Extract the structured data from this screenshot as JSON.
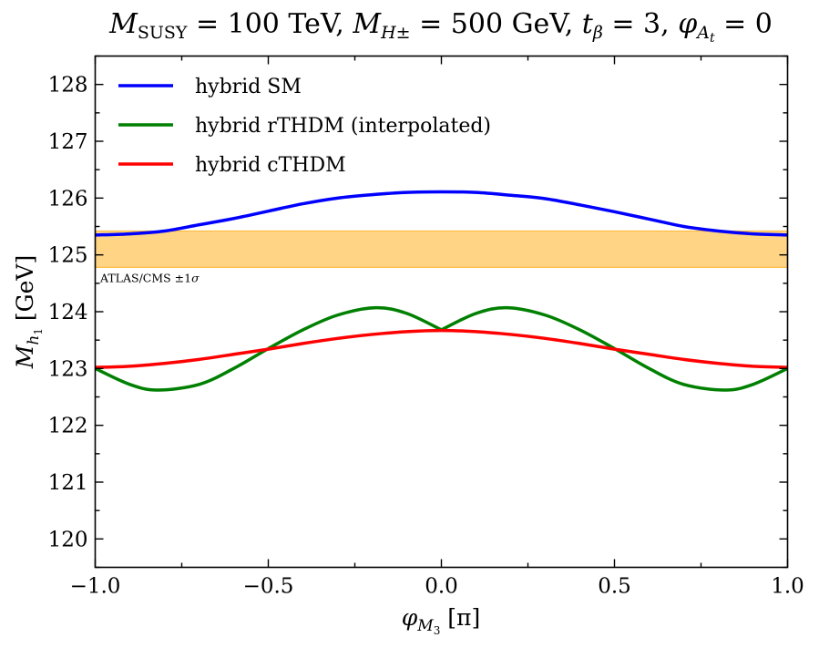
{
  "chart_data": {
    "type": "line",
    "title": {
      "msusy_sym": "M",
      "msusy_sub": "SUSY",
      "msusy_val": " = 100 TeV, ",
      "mh_sym": "M",
      "mh_sub": "H±",
      "mh_val": " = 500 GeV, ",
      "tb_sym": "t",
      "tb_sub": "β",
      "tb_val": " = 3, ",
      "phi_sym": "φ",
      "phi_sub": "A",
      "phi_subsub": "t",
      "phi_val": " = 0"
    },
    "xlabel": {
      "sym": "φ",
      "sub": "M",
      "subsub": "3",
      "unit": " [π]"
    },
    "ylabel": {
      "sym": "M",
      "sub": "h",
      "subsub": "1",
      "unit": " [GeV]"
    },
    "xlim": [
      -1.0,
      1.0
    ],
    "ylim": [
      119.5,
      128.5
    ],
    "x_ticks": [
      -1.0,
      -0.5,
      0.0,
      0.5,
      1.0
    ],
    "x_tick_labels": [
      "−1.0",
      "−0.5",
      "0.0",
      "0.5",
      "1.0"
    ],
    "y_ticks": [
      120,
      121,
      122,
      123,
      124,
      125,
      126,
      127,
      128
    ],
    "y_tick_labels": [
      "120",
      "121",
      "122",
      "123",
      "124",
      "125",
      "126",
      "127",
      "128"
    ],
    "band": {
      "y_low": 124.78,
      "y_high": 125.42,
      "color": "#ffb733",
      "label_main": "ATLAS/CMS ±1",
      "label_sigma": "σ"
    },
    "legend_position": "upper-left",
    "series": [
      {
        "name": "hybrid SM",
        "color": "#0000ff",
        "x": [
          -1.0,
          -0.9,
          -0.8,
          -0.7,
          -0.6,
          -0.5,
          -0.4,
          -0.3,
          -0.2,
          -0.1,
          0.0,
          0.1,
          0.2,
          0.3,
          0.4,
          0.5,
          0.6,
          0.7,
          0.8,
          0.9,
          1.0
        ],
        "y": [
          125.35,
          125.37,
          125.42,
          125.53,
          125.64,
          125.77,
          125.9,
          126.0,
          126.06,
          126.1,
          126.11,
          126.1,
          126.05,
          125.99,
          125.88,
          125.76,
          125.63,
          125.5,
          125.42,
          125.37,
          125.35
        ]
      },
      {
        "name": "hybrid rTHDM (interpolated)",
        "color": "#008000",
        "x": [
          -1.0,
          -0.9,
          -0.82,
          -0.7,
          -0.6,
          -0.5,
          -0.4,
          -0.3,
          -0.19,
          -0.1,
          0.0,
          0.1,
          0.19,
          0.3,
          0.4,
          0.5,
          0.6,
          0.7,
          0.82,
          0.9,
          1.0
        ],
        "y": [
          123.0,
          122.72,
          122.62,
          122.72,
          123.0,
          123.35,
          123.68,
          123.94,
          124.07,
          123.97,
          123.68,
          123.97,
          124.07,
          123.94,
          123.68,
          123.35,
          123.0,
          122.72,
          122.62,
          122.72,
          123.0
        ]
      },
      {
        "name": "hybrid cTHDM",
        "color": "#ff0000",
        "x": [
          -1.0,
          -0.9,
          -0.8,
          -0.7,
          -0.6,
          -0.5,
          -0.4,
          -0.3,
          -0.2,
          -0.1,
          0.0,
          0.1,
          0.2,
          0.3,
          0.4,
          0.5,
          0.6,
          0.7,
          0.8,
          0.9,
          1.0
        ],
        "y": [
          123.02,
          123.04,
          123.09,
          123.16,
          123.25,
          123.34,
          123.44,
          123.53,
          123.6,
          123.65,
          123.67,
          123.65,
          123.6,
          123.53,
          123.44,
          123.34,
          123.25,
          123.16,
          123.09,
          123.04,
          123.02
        ]
      }
    ]
  }
}
